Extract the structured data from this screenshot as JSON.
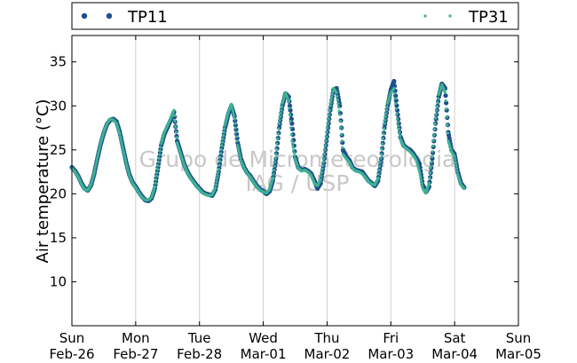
{
  "chart_data": {
    "type": "scatter",
    "title": "",
    "xlabel": "",
    "ylabel": "Air temperature (°C)",
    "xlim": [
      "2017-02-26",
      "2017-03-05"
    ],
    "ylim": [
      5,
      38
    ],
    "yticks": [
      10,
      15,
      20,
      25,
      30,
      35
    ],
    "xticks": [
      {
        "day": "Sun",
        "date": "Feb-26"
      },
      {
        "day": "Mon",
        "date": "Feb-27"
      },
      {
        "day": "Tue",
        "date": "Feb-28"
      },
      {
        "day": "Wed",
        "date": "Mar-01"
      },
      {
        "day": "Thu",
        "date": "Mar-02"
      },
      {
        "day": "Fri",
        "date": "Mar-03"
      },
      {
        "day": "Sat",
        "date": "Mar-04"
      },
      {
        "day": "Sun",
        "date": "Mar-05"
      }
    ],
    "grid": "vertical",
    "legend_position": "top",
    "watermark": [
      "Grupo de Micrometeorologia",
      "IAG / USP"
    ],
    "series": [
      {
        "name": "TP11",
        "color": "#1f4e8c",
        "x_unit": "days since Feb-26 00:00",
        "points": [
          [
            0.0,
            23.0
          ],
          [
            0.05,
            22.6
          ],
          [
            0.1,
            22.0
          ],
          [
            0.15,
            21.2
          ],
          [
            0.2,
            20.6
          ],
          [
            0.25,
            20.4
          ],
          [
            0.3,
            21.0
          ],
          [
            0.35,
            22.3
          ],
          [
            0.4,
            24.0
          ],
          [
            0.45,
            25.6
          ],
          [
            0.5,
            26.9
          ],
          [
            0.55,
            27.9
          ],
          [
            0.6,
            28.4
          ],
          [
            0.65,
            28.5
          ],
          [
            0.7,
            28.2
          ],
          [
            0.75,
            27.0
          ],
          [
            0.8,
            25.3
          ],
          [
            0.85,
            23.6
          ],
          [
            0.9,
            22.2
          ],
          [
            0.95,
            21.3
          ],
          [
            1.0,
            20.8
          ],
          [
            1.05,
            20.2
          ],
          [
            1.1,
            19.7
          ],
          [
            1.15,
            19.3
          ],
          [
            1.2,
            19.2
          ],
          [
            1.25,
            19.5
          ],
          [
            1.3,
            20.6
          ],
          [
            1.35,
            23.0
          ],
          [
            1.4,
            25.5
          ],
          [
            1.45,
            26.8
          ],
          [
            1.5,
            27.6
          ],
          [
            1.55,
            28.4
          ],
          [
            1.6,
            29.3
          ],
          [
            1.65,
            26.0
          ],
          [
            1.7,
            24.8
          ],
          [
            1.75,
            23.6
          ],
          [
            1.8,
            22.7
          ],
          [
            1.85,
            22.0
          ],
          [
            1.9,
            21.5
          ],
          [
            1.95,
            21.0
          ],
          [
            2.0,
            20.6
          ],
          [
            2.05,
            20.2
          ],
          [
            2.1,
            20.0
          ],
          [
            2.15,
            19.9
          ],
          [
            2.2,
            19.8
          ],
          [
            2.25,
            20.5
          ],
          [
            2.3,
            22.5
          ],
          [
            2.35,
            25.2
          ],
          [
            2.4,
            27.5
          ],
          [
            2.45,
            29.0
          ],
          [
            2.5,
            30.0
          ],
          [
            2.55,
            28.8
          ],
          [
            2.6,
            25.8
          ],
          [
            2.65,
            24.0
          ],
          [
            2.7,
            23.0
          ],
          [
            2.75,
            22.4
          ],
          [
            2.8,
            22.0
          ],
          [
            2.85,
            21.4
          ],
          [
            2.9,
            20.9
          ],
          [
            2.95,
            20.5
          ],
          [
            3.0,
            20.3
          ],
          [
            3.05,
            20.0
          ],
          [
            3.1,
            20.3
          ],
          [
            3.15,
            21.5
          ],
          [
            3.2,
            24.0
          ],
          [
            3.25,
            27.5
          ],
          [
            3.3,
            30.0
          ],
          [
            3.35,
            31.4
          ],
          [
            3.4,
            31.0
          ],
          [
            3.45,
            28.0
          ],
          [
            3.5,
            24.2
          ],
          [
            3.55,
            23.0
          ],
          [
            3.6,
            22.7
          ],
          [
            3.65,
            22.8
          ],
          [
            3.7,
            22.6
          ],
          [
            3.75,
            22.3
          ],
          [
            3.8,
            21.5
          ],
          [
            3.85,
            20.6
          ],
          [
            3.9,
            21.2
          ],
          [
            3.95,
            23.5
          ],
          [
            4.0,
            26.5
          ],
          [
            4.05,
            29.5
          ],
          [
            4.1,
            31.8
          ],
          [
            4.15,
            32.0
          ],
          [
            4.2,
            30.0
          ],
          [
            4.25,
            25.0
          ],
          [
            4.3,
            24.2
          ],
          [
            4.35,
            23.8
          ],
          [
            4.4,
            23.0
          ],
          [
            4.45,
            22.7
          ],
          [
            4.5,
            22.6
          ],
          [
            4.55,
            22.5
          ],
          [
            4.6,
            22.0
          ],
          [
            4.65,
            21.5
          ],
          [
            4.7,
            21.2
          ],
          [
            4.75,
            20.9
          ],
          [
            4.8,
            21.5
          ],
          [
            4.85,
            24.0
          ],
          [
            4.9,
            27.5
          ],
          [
            4.95,
            30.0
          ],
          [
            5.0,
            31.8
          ],
          [
            5.05,
            32.8
          ],
          [
            5.1,
            29.5
          ],
          [
            5.15,
            26.5
          ],
          [
            5.2,
            25.5
          ],
          [
            5.25,
            25.2
          ],
          [
            5.3,
            25.0
          ],
          [
            5.35,
            24.6
          ],
          [
            5.4,
            24.0
          ],
          [
            5.45,
            23.4
          ],
          [
            5.5,
            21.0
          ],
          [
            5.55,
            20.2
          ],
          [
            5.6,
            20.8
          ],
          [
            5.65,
            24.0
          ],
          [
            5.7,
            28.0
          ],
          [
            5.75,
            31.0
          ],
          [
            5.8,
            32.5
          ],
          [
            5.85,
            32.0
          ],
          [
            5.9,
            27.0
          ],
          [
            5.95,
            25.0
          ],
          [
            6.0,
            24.5
          ],
          [
            6.05,
            22.5
          ],
          [
            6.1,
            21.2
          ],
          [
            6.15,
            20.7
          ]
        ]
      },
      {
        "name": "TP31",
        "color": "#3db391",
        "x_unit": "days since Feb-26 00:00",
        "points": [
          [
            0.0,
            22.9
          ],
          [
            0.05,
            22.5
          ],
          [
            0.1,
            21.9
          ],
          [
            0.15,
            21.1
          ],
          [
            0.2,
            20.5
          ],
          [
            0.25,
            20.4
          ],
          [
            0.3,
            21.1
          ],
          [
            0.35,
            22.4
          ],
          [
            0.4,
            24.1
          ],
          [
            0.45,
            25.7
          ],
          [
            0.5,
            27.0
          ],
          [
            0.55,
            28.0
          ],
          [
            0.6,
            28.5
          ],
          [
            0.65,
            28.4
          ],
          [
            0.7,
            28.0
          ],
          [
            0.75,
            26.8
          ],
          [
            0.8,
            25.1
          ],
          [
            0.85,
            23.5
          ],
          [
            0.9,
            22.1
          ],
          [
            0.95,
            21.2
          ],
          [
            1.0,
            20.7
          ],
          [
            1.05,
            20.1
          ],
          [
            1.1,
            19.6
          ],
          [
            1.15,
            19.3
          ],
          [
            1.2,
            19.3
          ],
          [
            1.25,
            19.6
          ],
          [
            1.3,
            20.8
          ],
          [
            1.35,
            23.2
          ],
          [
            1.4,
            25.7
          ],
          [
            1.45,
            27.0
          ],
          [
            1.5,
            27.8
          ],
          [
            1.55,
            28.6
          ],
          [
            1.6,
            29.5
          ],
          [
            1.65,
            25.8
          ],
          [
            1.7,
            24.6
          ],
          [
            1.75,
            23.5
          ],
          [
            1.8,
            22.6
          ],
          [
            1.85,
            21.9
          ],
          [
            1.9,
            21.4
          ],
          [
            1.95,
            20.9
          ],
          [
            2.0,
            20.5
          ],
          [
            2.05,
            20.1
          ],
          [
            2.1,
            19.9
          ],
          [
            2.15,
            19.8
          ],
          [
            2.2,
            19.9
          ],
          [
            2.25,
            20.7
          ],
          [
            2.3,
            22.8
          ],
          [
            2.35,
            25.5
          ],
          [
            2.4,
            27.8
          ],
          [
            2.45,
            29.2
          ],
          [
            2.5,
            30.2
          ],
          [
            2.55,
            28.5
          ],
          [
            2.6,
            25.5
          ],
          [
            2.65,
            23.8
          ],
          [
            2.7,
            22.9
          ],
          [
            2.75,
            22.3
          ],
          [
            2.8,
            21.9
          ],
          [
            2.85,
            21.3
          ],
          [
            2.9,
            20.8
          ],
          [
            2.95,
            20.4
          ],
          [
            3.0,
            20.2
          ],
          [
            3.05,
            20.1
          ],
          [
            3.1,
            20.5
          ],
          [
            3.15,
            21.8
          ],
          [
            3.2,
            24.5
          ],
          [
            3.25,
            28.0
          ],
          [
            3.3,
            30.3
          ],
          [
            3.35,
            31.5
          ],
          [
            3.4,
            30.5
          ],
          [
            3.45,
            26.0
          ],
          [
            3.5,
            24.0
          ],
          [
            3.55,
            22.9
          ],
          [
            3.6,
            22.6
          ],
          [
            3.65,
            22.7
          ],
          [
            3.7,
            22.5
          ],
          [
            3.75,
            22.1
          ],
          [
            3.8,
            21.2
          ],
          [
            3.85,
            20.9
          ],
          [
            3.9,
            21.6
          ],
          [
            3.95,
            24.0
          ],
          [
            4.0,
            27.0
          ],
          [
            4.05,
            30.0
          ],
          [
            4.1,
            32.0
          ],
          [
            4.15,
            31.5
          ],
          [
            4.2,
            29.0
          ],
          [
            4.25,
            24.5
          ],
          [
            4.3,
            24.0
          ],
          [
            4.35,
            23.6
          ],
          [
            4.4,
            22.9
          ],
          [
            4.45,
            22.6
          ],
          [
            4.5,
            22.5
          ],
          [
            4.55,
            22.3
          ],
          [
            4.6,
            21.9
          ],
          [
            4.65,
            21.4
          ],
          [
            4.7,
            21.1
          ],
          [
            4.75,
            21.0
          ],
          [
            4.8,
            21.8
          ],
          [
            4.85,
            24.5
          ],
          [
            4.9,
            28.0
          ],
          [
            4.95,
            30.3
          ],
          [
            5.0,
            31.5
          ],
          [
            5.05,
            32.0
          ],
          [
            5.1,
            28.5
          ],
          [
            5.15,
            26.2
          ],
          [
            5.2,
            25.4
          ],
          [
            5.25,
            25.1
          ],
          [
            5.3,
            24.8
          ],
          [
            5.35,
            24.4
          ],
          [
            5.4,
            23.8
          ],
          [
            5.45,
            22.5
          ],
          [
            5.5,
            20.6
          ],
          [
            5.55,
            20.1
          ],
          [
            5.6,
            21.2
          ],
          [
            5.65,
            24.8
          ],
          [
            5.7,
            28.6
          ],
          [
            5.75,
            31.3
          ],
          [
            5.8,
            32.4
          ],
          [
            5.85,
            31.5
          ],
          [
            5.9,
            26.0
          ],
          [
            5.95,
            24.8
          ],
          [
            6.0,
            24.2
          ],
          [
            6.05,
            22.2
          ],
          [
            6.1,
            21.0
          ],
          [
            6.15,
            20.6
          ]
        ]
      }
    ]
  }
}
